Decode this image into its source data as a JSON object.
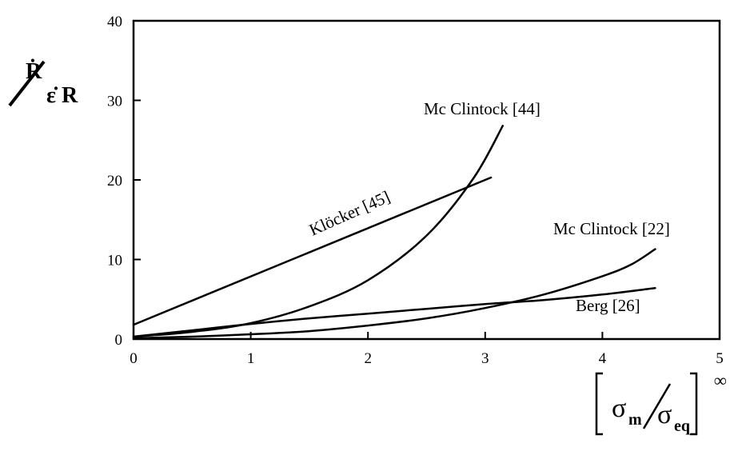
{
  "chart_data": {
    "type": "line",
    "xlim": [
      0,
      5
    ],
    "ylim": [
      0,
      40
    ],
    "x_ticks": [
      "0",
      "1",
      "2",
      "3",
      "4",
      "5"
    ],
    "y_ticks": [
      "0",
      "10",
      "20",
      "30",
      "40"
    ],
    "grid": false,
    "legend": "none",
    "ylabel": {
      "numerator": "Ṙ",
      "denominator": "ε̇ R"
    },
    "xlabel": {
      "sigma": "σ",
      "numerator_sub": "m",
      "denominator_sub": "eq",
      "superscript": "∞"
    },
    "series": [
      {
        "name": "Mc Clintock [44]",
        "x": [
          0,
          0.5,
          1,
          1.5,
          2,
          2.5,
          2.9,
          3.15
        ],
        "y": [
          0.3,
          0.9,
          2.0,
          4.1,
          7.4,
          13.0,
          20.2,
          26.8
        ]
      },
      {
        "name": "Klöcker [45]",
        "x": [
          0,
          3.05
        ],
        "y": [
          1.8,
          20.3
        ]
      },
      {
        "name": "Mc Clintock [22]",
        "x": [
          0,
          0.5,
          1,
          1.5,
          2,
          2.5,
          3,
          3.5,
          4,
          4.25,
          4.45
        ],
        "y": [
          0.1,
          0.3,
          0.6,
          1.0,
          1.7,
          2.6,
          3.9,
          5.6,
          7.9,
          9.4,
          11.3
        ]
      },
      {
        "name": "Berg [26]",
        "x": [
          0,
          0.5,
          1,
          1.5,
          2,
          2.5,
          3,
          3.5,
          4,
          4.45
        ],
        "y": [
          0.3,
          1.1,
          1.9,
          2.6,
          3.2,
          3.8,
          4.4,
          4.9,
          5.6,
          6.4
        ]
      }
    ]
  }
}
